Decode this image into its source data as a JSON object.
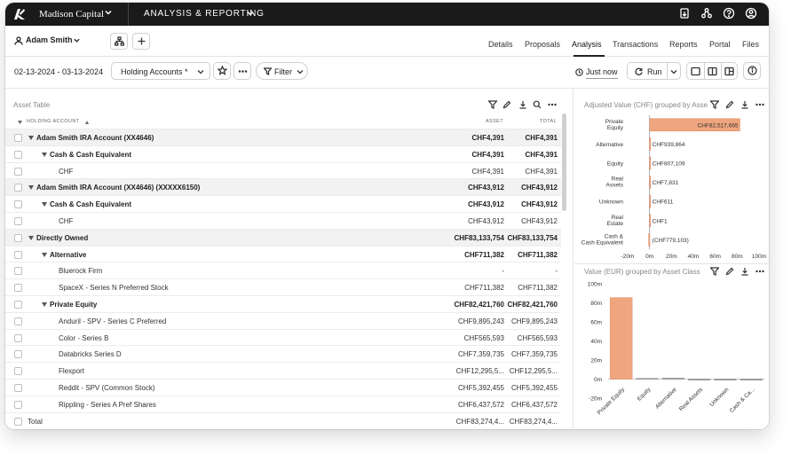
{
  "topbar": {
    "brand": "Madison Capital",
    "module": "ANALYSIS & REPORTING"
  },
  "nav": {
    "user": "Adam Smith",
    "tabs": [
      "Details",
      "Proposals",
      "Analysis",
      "Transactions",
      "Reports",
      "Portal",
      "Files"
    ],
    "active_tab": "Analysis"
  },
  "toolbar": {
    "date_range": "02-13-2024 - 03-13-2024",
    "view_select": "Holding Accounts *",
    "filter_label": "Filter",
    "refreshed": "Just now",
    "run_label": "Run"
  },
  "table": {
    "title": "Asset Table",
    "columns": {
      "account": "HOLDING ACCOUNT",
      "asset": "ASSET",
      "total": "TOTAL"
    },
    "rows": [
      {
        "label": "Adam Smith IRA Account (XX4646)",
        "asset": "CHF4,391",
        "total": "CHF4,391",
        "level": 0,
        "group": true,
        "bold": true,
        "caret": true
      },
      {
        "label": "Cash & Cash Equivalent",
        "asset": "CHF4,391",
        "total": "CHF4,391",
        "level": 1,
        "group": false,
        "bold": true,
        "caret": true
      },
      {
        "label": "CHF",
        "asset": "CHF4,391",
        "total": "CHF4,391",
        "level": 2,
        "group": false,
        "bold": false,
        "caret": false
      },
      {
        "label": "Adam Smith IRA Account (XX4646) (XXXXX6150)",
        "asset": "CHF43,912",
        "total": "CHF43,912",
        "level": 0,
        "group": true,
        "bold": true,
        "caret": true
      },
      {
        "label": "Cash & Cash Equivalent",
        "asset": "CHF43,912",
        "total": "CHF43,912",
        "level": 1,
        "group": false,
        "bold": true,
        "caret": true
      },
      {
        "label": "CHF",
        "asset": "CHF43,912",
        "total": "CHF43,912",
        "level": 2,
        "group": false,
        "bold": false,
        "caret": false
      },
      {
        "label": "Directly Owned",
        "asset": "CHF83,133,754",
        "total": "CHF83,133,754",
        "level": 0,
        "group": true,
        "bold": true,
        "caret": true
      },
      {
        "label": "Alternative",
        "asset": "CHF711,382",
        "total": "CHF711,382",
        "level": 1,
        "group": false,
        "bold": true,
        "caret": true
      },
      {
        "label": "Bluerock Firm",
        "asset": "-",
        "total": "-",
        "level": 2,
        "group": false,
        "bold": false,
        "caret": false
      },
      {
        "label": "SpaceX - Series N Preferred Stock",
        "asset": "CHF711,382",
        "total": "CHF711,382",
        "level": 2,
        "group": false,
        "bold": false,
        "caret": false
      },
      {
        "label": "Private Equity",
        "asset": "CHF82,421,760",
        "total": "CHF82,421,760",
        "level": 1,
        "group": false,
        "bold": true,
        "caret": true
      },
      {
        "label": "Anduril - SPV - Series C Preferred",
        "asset": "CHF9,895,243",
        "total": "CHF9,895,243",
        "level": 2,
        "group": false,
        "bold": false,
        "caret": false
      },
      {
        "label": "Color - Series B",
        "asset": "CHF565,593",
        "total": "CHF565,593",
        "level": 2,
        "group": false,
        "bold": false,
        "caret": false
      },
      {
        "label": "Databricks Series D",
        "asset": "CHF7,359,735",
        "total": "CHF7,359,735",
        "level": 2,
        "group": false,
        "bold": false,
        "caret": false
      },
      {
        "label": "Flexport",
        "asset": "CHF12,295,5...",
        "total": "CHF12,295,5...",
        "level": 2,
        "group": false,
        "bold": false,
        "caret": false
      },
      {
        "label": "Reddit - SPV (Common Stock)",
        "asset": "CHF5,392,455",
        "total": "CHF5,392,455",
        "level": 2,
        "group": false,
        "bold": false,
        "caret": false
      },
      {
        "label": "Rippling - Series A Pref Shares",
        "asset": "CHF6,437,572",
        "total": "CHF6,437,572",
        "level": 2,
        "group": false,
        "bold": false,
        "caret": false
      },
      {
        "label": "Total",
        "asset": "CHF83,274,4...",
        "total": "CHF83,274,4...",
        "level": -1,
        "group": false,
        "bold": false,
        "caret": false
      }
    ]
  },
  "colors": {
    "bar": "#efa57e",
    "bar_border": "#d9825a",
    "topbar": "#1a1a1a"
  },
  "chart_data": [
    {
      "type": "bar",
      "orientation": "horizontal",
      "title": "Adjusted Value (CHF) grouped by Asse",
      "categories": [
        "Private Equity",
        "Alternative",
        "Equity",
        "Real Assets",
        "Unknown",
        "Real Estate",
        "Cash & Cash Equivalent"
      ],
      "values": [
        82517665,
        939864,
        807109,
        7831,
        611,
        1,
        -779103
      ],
      "data_labels": [
        "CHF82,517,665",
        "CHF939,864",
        "CHF807,109",
        "CHF7,831",
        "CHF611",
        "CHF1",
        "(CHF779,103)"
      ],
      "xlim": [
        -20000000,
        100000000
      ],
      "x_ticks": [
        "-20m",
        "0m",
        "20m",
        "40m",
        "60m",
        "80m",
        "100m"
      ],
      "x_tick_values": [
        -20000000,
        0,
        20000000,
        40000000,
        60000000,
        80000000,
        100000000
      ]
    },
    {
      "type": "bar",
      "title": "Value (EUR) grouped by Asset Class",
      "categories": [
        "Private Equity",
        "Equity",
        "Alternative",
        "Real Assets",
        "Unknown",
        "Cash & Ca..."
      ],
      "values": [
        85500000,
        810000,
        1050000,
        35000,
        700,
        -700000
      ],
      "ylim": [
        -20000000,
        100000000
      ],
      "y_ticks": [
        "-20m",
        "0m",
        "20m",
        "40m",
        "60m",
        "80m",
        "100m"
      ],
      "y_tick_values": [
        -20000000,
        0,
        20000000,
        40000000,
        60000000,
        80000000,
        100000000
      ]
    }
  ]
}
